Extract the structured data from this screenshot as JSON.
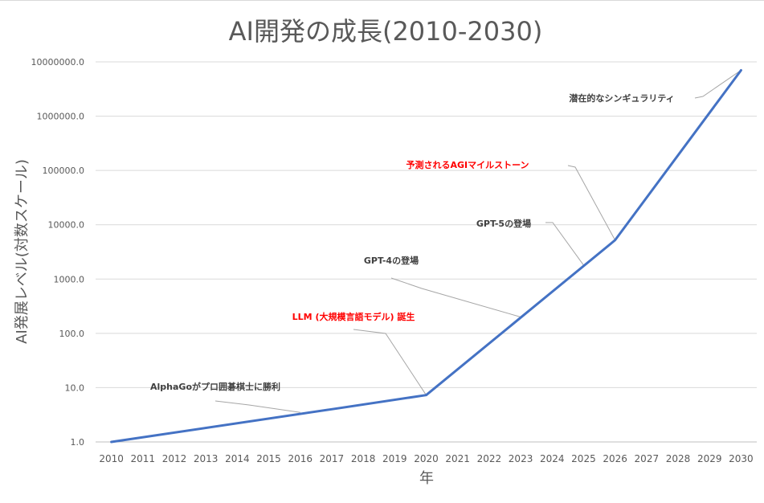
{
  "chart_data": {
    "type": "line",
    "title": "AI開発の成長(2010-2030)",
    "xlabel": "年",
    "ylabel": "AI発展レベル(対数スケール)",
    "y_scale": "log",
    "ylim": [
      1,
      10000000
    ],
    "y_tick_labels": [
      "1.0",
      "10.0",
      "100.0",
      "1000.0",
      "10000.0",
      "100000.0",
      "1000000.0",
      "10000000.0"
    ],
    "x_tick_labels": [
      "2010",
      "2011",
      "2012",
      "2013",
      "2014",
      "2015",
      "2016",
      "2017",
      "2018",
      "2019",
      "2020",
      "2021",
      "2022",
      "2023",
      "2024",
      "2025",
      "2026",
      "2027",
      "2028",
      "2029",
      "2030"
    ],
    "grid": "horizontal",
    "line_color": "#4472c4",
    "series": [
      {
        "x": [
          2010,
          2017,
          2020,
          2026,
          2030
        ],
        "y": [
          1.0,
          4.0,
          7.3,
          5200,
          7000000
        ]
      }
    ],
    "annotations": [
      {
        "text": "AlphaGoがプロ囲碁棋士に勝利",
        "x": 2016,
        "y": 3.5,
        "color": "#404040"
      },
      {
        "text": "LLM (大規模言語モデル) 誕生",
        "x": 2020,
        "y": 7.3,
        "color": "#ff0000"
      },
      {
        "text": "GPT-4の登場",
        "x": 2023,
        "y": 200,
        "color": "#404040"
      },
      {
        "text": "GPT-5の登場",
        "x": 2025,
        "y": 1800,
        "color": "#404040"
      },
      {
        "text": "予測されるAGIマイルストーン",
        "x": 2026,
        "y": 5200,
        "color": "#ff0000"
      },
      {
        "text": "潜在的なシンギュラリティ",
        "x": 2030,
        "y": 7000000,
        "color": "#404040"
      }
    ]
  }
}
